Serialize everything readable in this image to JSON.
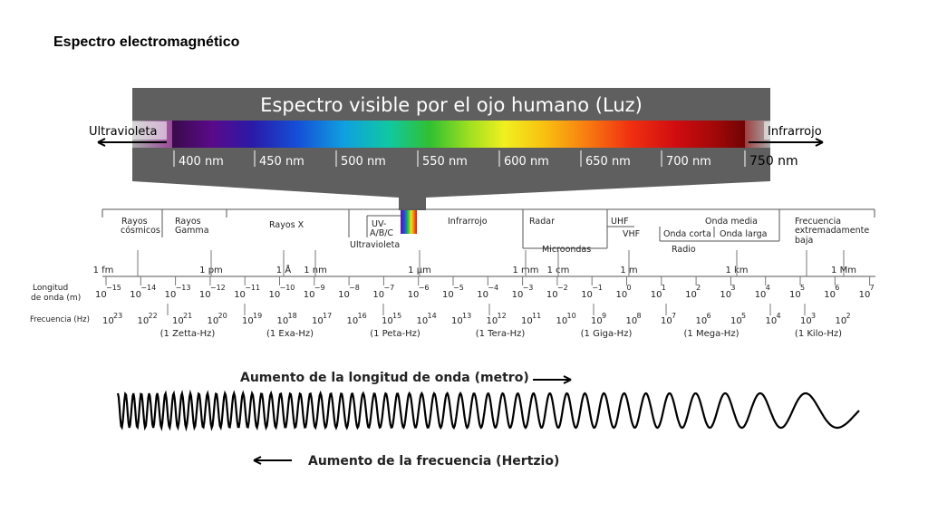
{
  "title": "Espectro electromagnético",
  "visible": {
    "header": "Espectro visible por el ojo humano (Luz)",
    "left_label": "Ultravioleta",
    "right_label": "Infrarrojo",
    "nm_labels": [
      "400 nm",
      "450 nm",
      "500 nm",
      "550 nm",
      "600 nm",
      "650 nm",
      "700 nm",
      "750 nm"
    ]
  },
  "bands": {
    "rayos_cosmicos": [
      "Rayos",
      "cósmicos"
    ],
    "rayos_gamma": [
      "Rayos",
      "Gamma"
    ],
    "rayos_x": "Rayos X",
    "uv_abc": [
      "UV-",
      "A/B/C"
    ],
    "ultravioleta": "Ultravioleta",
    "infrarrojo": "Infrarrojo",
    "radar": "Radar",
    "microondas": "Microondas",
    "uhf": "UHF",
    "vhf": "VHF",
    "onda_corta": "Onda corta",
    "onda_media": "Onda media",
    "onda_larga": "Onda larga",
    "radio": "Radio",
    "frecuencia_baja": [
      "Frecuencia",
      "extremadamente",
      "baja"
    ]
  },
  "scale": {
    "length_units": [
      "1 fm",
      "1 pm",
      "1 Å",
      "1 nm",
      "1 µm",
      "1 mm",
      "1 cm",
      "1 m",
      "1 km",
      "1 Mm"
    ],
    "wavelength_label": [
      "Longitud",
      "de onda (m)"
    ],
    "frequency_label": "Frecuencia (Hz)",
    "wavelength_exponents": [
      "−15",
      "−14",
      "−13",
      "−12",
      "−11",
      "−10",
      "−9",
      "−8",
      "−7",
      "−6",
      "−5",
      "−4",
      "−3",
      "−2",
      "−1",
      "0",
      "1",
      "2",
      "3",
      "4",
      "5",
      "6",
      "7"
    ],
    "frequency_exponents": [
      "23",
      "22",
      "21",
      "20",
      "19",
      "18",
      "17",
      "16",
      "15",
      "14",
      "13",
      "12",
      "11",
      "10",
      "9",
      "8",
      "7",
      "6",
      "5",
      "4",
      "3",
      "2"
    ],
    "frequency_units": [
      "(1 Zetta-Hz)",
      "(1 Exa-Hz)",
      "(1 Peta-Hz)",
      "(1 Tera-Hz)",
      "(1 Giga-Hz)",
      "(1 Mega-Hz)",
      "(1 Kilo-Hz)"
    ],
    "base": "10"
  },
  "wave": {
    "wavelength_caption": "Aumento de la longitud de onda (metro)",
    "frequency_caption": "Aumento de la frecuencia (Hertzio)"
  }
}
